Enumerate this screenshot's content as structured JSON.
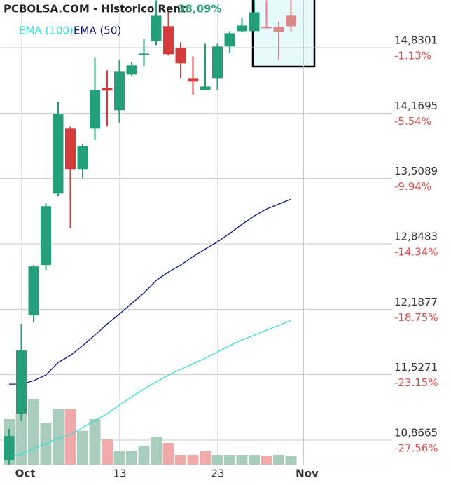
{
  "chart_data": {
    "type": "candlestick",
    "title": "PCBOLSA.COM - Historico  Rent",
    "title_value": "38,09%",
    "categories": [
      null,
      "Oct",
      null,
      null,
      null,
      null,
      null,
      null,
      null,
      "13",
      null,
      null,
      null,
      null,
      null,
      null,
      null,
      "23",
      null,
      null,
      null,
      null,
      null,
      null,
      "Nov"
    ],
    "open": [
      10.66,
      11.135,
      12.126,
      12.635,
      13.356,
      14.014,
      13.604,
      14.014,
      14.424,
      14.198,
      14.559,
      14.757,
      14.898,
      15.047,
      14.827,
      14.516,
      14.403,
      14.516,
      14.842,
      14.997,
      14.997,
      15.04,
      15.04,
      15.153,
      null
    ],
    "high": [
      10.98,
      12.041,
      12.635,
      13.257,
      14.283,
      14.035,
      13.858,
      14.728,
      14.601,
      14.707,
      14.686,
      14.919,
      15.308,
      15.202,
      14.884,
      14.742,
      14.87,
      14.87,
      14.997,
      15.131,
      15.308,
      15.308,
      15.096,
      15.308,
      null
    ],
    "low": [
      10.62,
      11.064,
      12.055,
      12.585,
      13.328,
      13.003,
      13.512,
      13.894,
      14.035,
      14.071,
      14.544,
      14.643,
      14.856,
      14.75,
      14.516,
      14.353,
      14.403,
      14.403,
      14.778,
      14.99,
      14.997,
      15.025,
      14.707,
      14.99,
      null
    ],
    "close": [
      10.908,
      11.772,
      12.621,
      13.229,
      14.162,
      13.604,
      13.837,
      14.403,
      14.396,
      14.587,
      14.651,
      14.771,
      15.153,
      14.764,
      14.672,
      14.488,
      14.438,
      14.842,
      14.976,
      15.054,
      15.188,
      15.025,
      14.99,
      15.047,
      null
    ],
    "colors": [
      "#23a079",
      "#23a079",
      "#23a079",
      "#23a079",
      "#23a079",
      "#d63b3b",
      "#23a079",
      "#23a079",
      "#d63b3b",
      "#23a079",
      "#23a079",
      "#23a079",
      "#23a079",
      "#d63b3b",
      "#d63b3b",
      "#d63b3b",
      "#23a079",
      "#23a079",
      "#23a079",
      "#23a079",
      "#23a079",
      "#d98787",
      "#d98787",
      "#d98787",
      null
    ],
    "series": [
      {
        "name": "EMA (100)",
        "color": "#33dede",
        "values": [
          10.697,
          10.725,
          10.782,
          10.831,
          10.881,
          10.923,
          10.994,
          11.064,
          11.135,
          11.22,
          11.305,
          11.383,
          11.454,
          11.523,
          11.581,
          11.637,
          11.694,
          11.757,
          11.821,
          11.878,
          11.927,
          11.977,
          12.026,
          12.076,
          null
        ]
      },
      {
        "name": "EMA (50)",
        "color": "#0a1480",
        "values": [
          11.432,
          11.432,
          11.467,
          11.523,
          11.651,
          11.722,
          11.821,
          11.927,
          12.04,
          12.14,
          12.246,
          12.352,
          12.479,
          12.564,
          12.635,
          12.72,
          12.797,
          12.868,
          12.953,
          13.045,
          13.13,
          13.2,
          13.25,
          13.3,
          null
        ]
      }
    ],
    "volume": {
      "values": [
        65,
        73,
        94,
        60,
        79,
        79,
        48,
        65,
        36,
        20,
        20,
        27,
        39,
        31,
        14,
        14,
        19,
        14,
        14,
        14,
        14,
        13,
        14,
        13,
        null
      ],
      "colors": [
        "#a9cdbc",
        "#a9cdbc",
        "#a9cdbc",
        "#a9cdbc",
        "#a9cdbc",
        "#f2a9a9",
        "#a9cdbc",
        "#a9cdbc",
        "#f2a9a9",
        "#a9cdbc",
        "#a9cdbc",
        "#a9cdbc",
        "#a9cdbc",
        "#f2a9a9",
        "#f2a9a9",
        "#f2a9a9",
        "#f2a9a9",
        "#a9cdbc",
        "#a9cdbc",
        "#a9cdbc",
        "#a9cdbc",
        "#f2a9a9",
        "#a9cdbc",
        "#a9cdbc",
        null
      ]
    },
    "volume_lim": [
      0,
      100
    ],
    "ylim": [
      10.6188,
      15.3114
    ],
    "yticks": [
      {
        "value": 14.8301,
        "label": "14,8301"
      },
      {
        "value": 14.1695,
        "label": "14,1695"
      },
      {
        "value": 13.5089,
        "label": "13,5089"
      },
      {
        "value": 12.8483,
        "label": "12,8483"
      },
      {
        "value": 12.1877,
        "label": "12,1877"
      },
      {
        "value": 11.5271,
        "label": "11,5271"
      },
      {
        "value": 10.8665,
        "label": "10,8665"
      }
    ],
    "y2lim": [
      -29.212,
      2.079
    ],
    "y2ticks": [
      {
        "value": -1.13,
        "label": "-1.13%"
      },
      {
        "value": -5.54,
        "label": "-5.54%"
      },
      {
        "value": -9.94,
        "label": "-9.94%"
      },
      {
        "value": -14.34,
        "label": "-14.34%"
      },
      {
        "value": -18.75,
        "label": "-18.75%"
      },
      {
        "value": -23.15,
        "label": "-23.15%"
      },
      {
        "value": -27.56,
        "label": "-27.56%"
      }
    ],
    "grid": true
  }
}
